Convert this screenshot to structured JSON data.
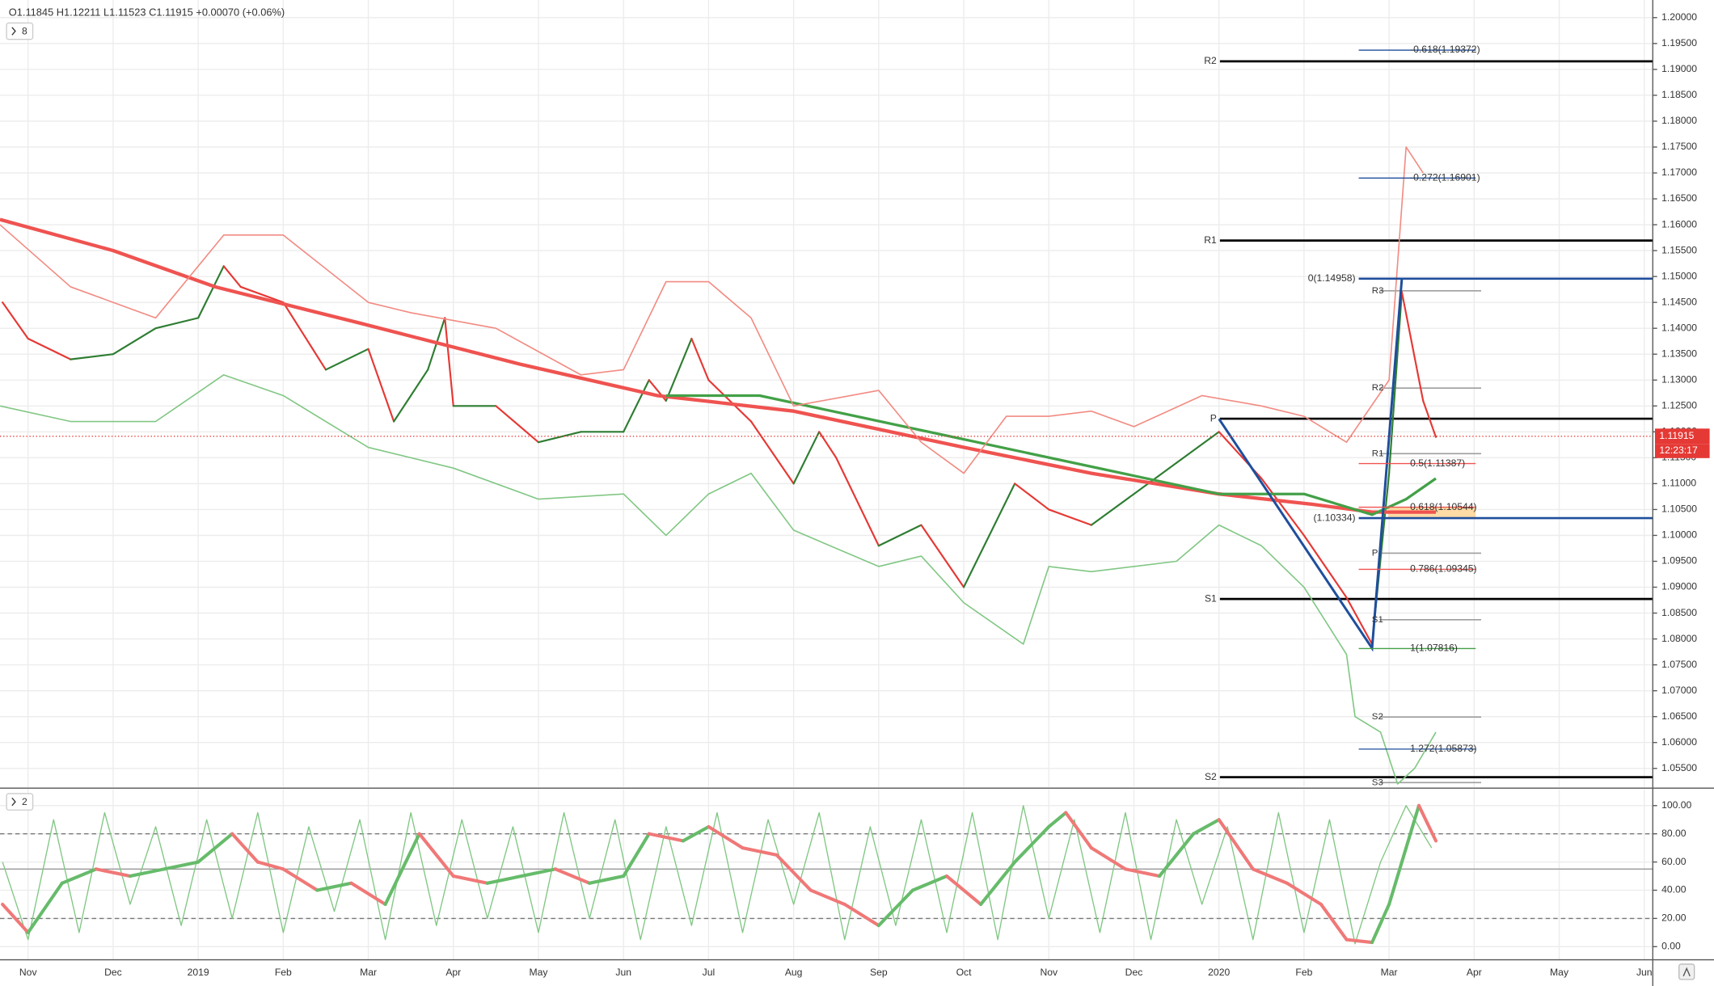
{
  "chart_data": [
    {
      "type": "line",
      "ohlc_label": "O1.11845  H1.12211  L1.11523  C1.11915  +0.00070 (+0.06%)",
      "study_count": 8,
      "xlim": [
        -0.33,
        19.1
      ],
      "ylim": [
        1.0514,
        1.2034
      ],
      "grid": true,
      "yticks": [
        {
          "value": 1.055,
          "label": "1.05500"
        },
        {
          "value": 1.06,
          "label": "1.06000"
        },
        {
          "value": 1.065,
          "label": "1.06500"
        },
        {
          "value": 1.07,
          "label": "1.07000"
        },
        {
          "value": 1.075,
          "label": "1.07500"
        },
        {
          "value": 1.08,
          "label": "1.08000"
        },
        {
          "value": 1.085,
          "label": "1.08500"
        },
        {
          "value": 1.09,
          "label": "1.09000"
        },
        {
          "value": 1.095,
          "label": "1.09500"
        },
        {
          "value": 1.1,
          "label": "1.10000"
        },
        {
          "value": 1.105,
          "label": "1.10500"
        },
        {
          "value": 1.11,
          "label": "1.11000"
        },
        {
          "value": 1.115,
          "label": "1.11500"
        },
        {
          "value": 1.12,
          "label": "1.12000"
        },
        {
          "value": 1.125,
          "label": "1.12500"
        },
        {
          "value": 1.13,
          "label": "1.13000"
        },
        {
          "value": 1.135,
          "label": "1.13500"
        },
        {
          "value": 1.14,
          "label": "1.14000"
        },
        {
          "value": 1.145,
          "label": "1.14500"
        },
        {
          "value": 1.15,
          "label": "1.15000"
        },
        {
          "value": 1.155,
          "label": "1.15500"
        },
        {
          "value": 1.16,
          "label": "1.16000"
        },
        {
          "value": 1.165,
          "label": "1.16500"
        },
        {
          "value": 1.17,
          "label": "1.17000"
        },
        {
          "value": 1.175,
          "label": "1.17500"
        },
        {
          "value": 1.18,
          "label": "1.18000"
        },
        {
          "value": 1.185,
          "label": "1.18500"
        },
        {
          "value": 1.19,
          "label": "1.19000"
        },
        {
          "value": 1.195,
          "label": "1.19500"
        },
        {
          "value": 1.2,
          "label": "1.20000"
        }
      ],
      "last_price": {
        "value": 1.11915,
        "label": "1.11915",
        "color": "#e53935"
      },
      "countdown": "12:23:17",
      "series": [
        {
          "color": "#2e7d32",
          "down_color": "#e53935",
          "x": [
            -0.3,
            0,
            0.5,
            1,
            1.5,
            2,
            2.3,
            2.5,
            3,
            3.5,
            4,
            4.3,
            4.7,
            4.9,
            5,
            5.5,
            6,
            6.5,
            7,
            7.3,
            7.5,
            7.8,
            8,
            8.5,
            9,
            9.3,
            9.5,
            10,
            10.5,
            11,
            11.3,
            11.6,
            12,
            12.5,
            13,
            13.5,
            14,
            14.5,
            15,
            15.5,
            15.8,
            16,
            16.15,
            16.4,
            16.55
          ],
          "values": [
            1.145,
            1.138,
            1.134,
            1.135,
            1.14,
            1.142,
            1.152,
            1.148,
            1.145,
            1.132,
            1.136,
            1.122,
            1.132,
            1.142,
            1.125,
            1.125,
            1.118,
            1.12,
            1.12,
            1.13,
            1.126,
            1.138,
            1.13,
            1.122,
            1.11,
            1.12,
            1.115,
            1.098,
            1.102,
            1.09,
            1.1,
            1.11,
            1.105,
            1.102,
            1.108,
            1.114,
            1.12,
            1.111,
            1.1,
            1.088,
            1.079,
            1.112,
            1.147,
            1.126,
            1.119
          ]
        },
        {
          "color": "#ef5350",
          "x": [
            -0.33,
            1,
            2.2,
            3.9,
            5.8,
            7.4,
            9,
            11,
            12.5,
            14,
            15.1,
            15.8,
            16.55
          ],
          "values": [
            1.161,
            1.155,
            1.148,
            1.141,
            1.133,
            1.127,
            1.124,
            1.117,
            1.112,
            1.108,
            1.106,
            1.1045,
            1.1045
          ]
        },
        {
          "color": "#43a047",
          "x": [
            7.5,
            8.6,
            14,
            15,
            15.8,
            16.2,
            16.55
          ],
          "values": [
            1.127,
            1.127,
            1.108,
            1.108,
            1.104,
            1.107,
            1.111
          ]
        },
        {
          "color": "#f28b82",
          "x": [
            -0.33,
            0.5,
            1.5,
            2.3,
            3,
            4,
            4.5,
            5.5,
            6.5,
            7,
            7.5,
            8,
            8.5,
            9,
            10,
            10.5,
            11,
            11.5,
            12,
            12.5,
            13,
            13.8,
            14.5,
            15,
            15.5,
            16,
            16.2,
            16.4
          ],
          "values": [
            1.16,
            1.148,
            1.142,
            1.158,
            1.158,
            1.145,
            1.143,
            1.14,
            1.131,
            1.132,
            1.149,
            1.149,
            1.142,
            1.125,
            1.128,
            1.118,
            1.112,
            1.123,
            1.123,
            1.124,
            1.121,
            1.127,
            1.125,
            1.123,
            1.118,
            1.13,
            1.175,
            1.17
          ]
        },
        {
          "color": "#81c784",
          "x": [
            -0.33,
            0.5,
            1.5,
            2.3,
            3,
            4,
            5,
            6,
            7,
            7.5,
            8,
            8.5,
            9,
            10,
            10.5,
            11,
            11.7,
            12,
            12.5,
            13,
            13.5,
            14,
            14.5,
            15,
            15.5,
            15.6,
            15.9,
            16.1,
            16.3,
            16.55
          ],
          "values": [
            1.125,
            1.122,
            1.122,
            1.131,
            1.127,
            1.117,
            1.113,
            1.107,
            1.108,
            1.1,
            1.108,
            1.112,
            1.101,
            1.094,
            1.096,
            1.087,
            1.079,
            1.094,
            1.093,
            1.094,
            1.095,
            1.102,
            1.098,
            1.09,
            1.077,
            1.065,
            1.062,
            1.052,
            1.055,
            1.062
          ]
        }
      ],
      "trendline": {
        "color": "#1f4e9c",
        "x": [
          14,
          15.8,
          16.15
        ],
        "values": [
          1.1225,
          1.0782,
          1.1496
        ]
      },
      "pivots": {
        "color": "#000000",
        "levels": [
          {
            "label": "R2",
            "value": 1.19156
          },
          {
            "label": "R1",
            "value": 1.15695
          },
          {
            "label": "P",
            "value": 1.12254
          },
          {
            "label": "S1",
            "value": 1.08772
          },
          {
            "label": "S2",
            "value": 1.05331
          }
        ]
      },
      "pivots_minor": {
        "color": "#9e9e9e",
        "levels": [
          {
            "label": "R3",
            "value": 1.14724
          },
          {
            "label": "R2",
            "value": 1.12845
          },
          {
            "label": "R1",
            "value": 1.11579
          },
          {
            "label": "P",
            "value": 1.09658
          },
          {
            "label": "S1",
            "value": 1.08371
          },
          {
            "label": "S2",
            "value": 1.06492
          },
          {
            "label": "S3",
            "value": 1.05226
          }
        ]
      },
      "blue_lines": {
        "color": "#1f4e9c",
        "levels": [
          {
            "label": "0(1.14958)",
            "value": 1.14958
          },
          {
            "label": "(1.10334)",
            "value": 1.10334
          }
        ]
      },
      "fib": [
        {
          "label": "-0.618(1.19372)",
          "value": 1.19372,
          "color": "#1f4e9c"
        },
        {
          "label": "-0.272(1.16901)",
          "value": 1.16901,
          "color": "#1f4e9c"
        },
        {
          "label": "0.5(1.11387)",
          "value": 1.11387,
          "color": "#ef5350"
        },
        {
          "label": "0.618(1.10544)",
          "value": 1.10544,
          "color": "#ef5350"
        },
        {
          "label": "0.786(1.09345)",
          "value": 1.09345,
          "color": "#ef5350"
        },
        {
          "label": "1(1.07816)",
          "value": 1.07816,
          "color": "#43a047"
        },
        {
          "label": "1.272(1.05873)",
          "value": 1.05873,
          "color": "#1f4e9c"
        }
      ]
    },
    {
      "type": "line",
      "study_count": 2,
      "xlim": [
        -0.33,
        19.1
      ],
      "ylim": [
        -9.3,
        111.6
      ],
      "grid": true,
      "yticks": [
        {
          "value": 0,
          "label": "0.00"
        },
        {
          "value": 20,
          "label": "20.00"
        },
        {
          "value": 40,
          "label": "40.00"
        },
        {
          "value": 60,
          "label": "60.00"
        },
        {
          "value": 80,
          "label": "80.00"
        },
        {
          "value": 100,
          "label": "100.00"
        }
      ],
      "xticks": [
        {
          "value": 0,
          "label": "Nov"
        },
        {
          "value": 1,
          "label": "Dec"
        },
        {
          "value": 2,
          "label": "2019"
        },
        {
          "value": 3,
          "label": "Feb"
        },
        {
          "value": 4,
          "label": "Mar"
        },
        {
          "value": 5,
          "label": "Apr"
        },
        {
          "value": 6,
          "label": "May"
        },
        {
          "value": 7,
          "label": "Jun"
        },
        {
          "value": 8,
          "label": "Jul"
        },
        {
          "value": 9,
          "label": "Aug"
        },
        {
          "value": 10,
          "label": "Sep"
        },
        {
          "value": 11,
          "label": "Oct"
        },
        {
          "value": 12,
          "label": "Nov"
        },
        {
          "value": 13,
          "label": "Dec"
        },
        {
          "value": 14,
          "label": "2020"
        },
        {
          "value": 15,
          "label": "Feb"
        },
        {
          "value": 16,
          "label": "Mar"
        },
        {
          "value": 17,
          "label": "Apr"
        },
        {
          "value": 18,
          "label": "May"
        },
        {
          "value": 19,
          "label": "Jun"
        }
      ],
      "dashed_levels": [
        20,
        80
      ],
      "level": 55,
      "series": [
        {
          "color": "#81c784",
          "x": [
            -0.3,
            0,
            0.3,
            0.6,
            0.9,
            1.2,
            1.5,
            1.8,
            2.1,
            2.4,
            2.7,
            3,
            3.3,
            3.6,
            3.9,
            4.2,
            4.5,
            4.8,
            5.1,
            5.4,
            5.7,
            6,
            6.3,
            6.6,
            6.9,
            7.2,
            7.5,
            7.8,
            8.1,
            8.4,
            8.7,
            9,
            9.3,
            9.6,
            9.9,
            10.2,
            10.5,
            10.8,
            11.1,
            11.4,
            11.7,
            12,
            12.3,
            12.6,
            12.9,
            13.2,
            13.5,
            13.8,
            14.1,
            14.4,
            14.7,
            15,
            15.3,
            15.6,
            15.9,
            16.2,
            16.5
          ],
          "values": [
            60,
            5,
            90,
            10,
            95,
            30,
            85,
            15,
            90,
            20,
            95,
            10,
            85,
            25,
            90,
            5,
            95,
            15,
            90,
            20,
            85,
            10,
            95,
            20,
            90,
            5,
            85,
            15,
            95,
            10,
            90,
            30,
            95,
            5,
            85,
            15,
            90,
            10,
            95,
            5,
            100,
            20,
            90,
            10,
            95,
            5,
            90,
            30,
            85,
            5,
            95,
            10,
            90,
            2,
            60,
            100,
            70
          ]
        },
        {
          "color": "#66bb6a",
          "down_color": "#f07878",
          "x": [
            -0.3,
            0,
            0.4,
            0.8,
            1.2,
            1.6,
            2,
            2.4,
            2.7,
            3,
            3.4,
            3.8,
            4.2,
            4.6,
            5,
            5.4,
            5.8,
            6.2,
            6.6,
            7,
            7.3,
            7.7,
            8,
            8.4,
            8.8,
            9.2,
            9.6,
            10,
            10.4,
            10.8,
            11.2,
            11.6,
            12,
            12.2,
            12.5,
            12.9,
            13.3,
            13.7,
            14,
            14.4,
            14.8,
            15.2,
            15.5,
            15.8,
            16,
            16.2,
            16.35,
            16.55
          ],
          "values": [
            30,
            10,
            45,
            55,
            50,
            55,
            60,
            80,
            60,
            55,
            40,
            45,
            30,
            80,
            50,
            45,
            50,
            55,
            45,
            50,
            80,
            75,
            85,
            70,
            65,
            40,
            30,
            15,
            40,
            50,
            30,
            60,
            85,
            95,
            70,
            55,
            50,
            80,
            90,
            55,
            45,
            30,
            5,
            3,
            30,
            70,
            100,
            75
          ]
        }
      ]
    }
  ]
}
